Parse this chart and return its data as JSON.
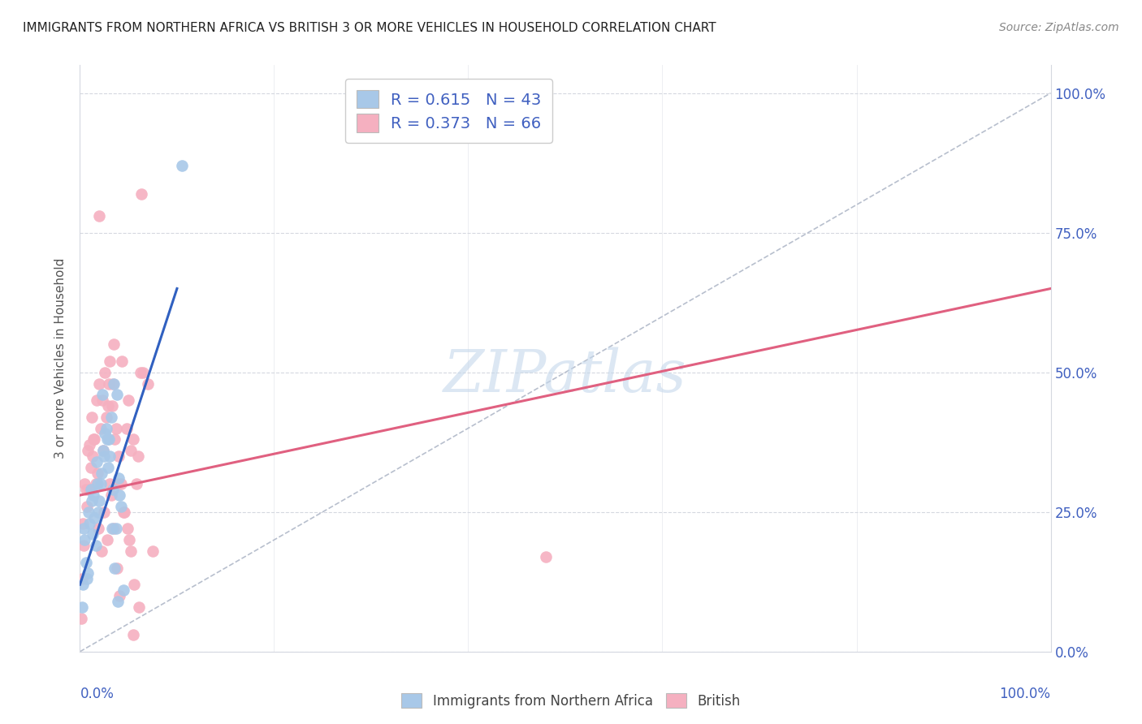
{
  "title": "IMMIGRANTS FROM NORTHERN AFRICA VS BRITISH 3 OR MORE VEHICLES IN HOUSEHOLD CORRELATION CHART",
  "source": "Source: ZipAtlas.com",
  "ylabel": "3 or more Vehicles in Household",
  "xlim": [
    0,
    100
  ],
  "ylim": [
    0,
    105
  ],
  "ytick_labels": [
    "0.0%",
    "25.0%",
    "50.0%",
    "75.0%",
    "100.0%"
  ],
  "ytick_values": [
    0,
    25,
    50,
    75,
    100
  ],
  "xtick_values": [
    0,
    20,
    40,
    60,
    80,
    100
  ],
  "blue_color": "#a8c8e8",
  "pink_color": "#f5b0c0",
  "blue_line_color": "#3060c0",
  "pink_line_color": "#e06080",
  "diagonal_color": "#b0b8c8",
  "watermark_color": "#c5d8ec",
  "legend_text_color": "#4060c0",
  "background_color": "#ffffff",
  "grid_color": "#d5d8e0",
  "blue_scatter_x": [
    0.4,
    0.6,
    0.8,
    1.0,
    1.2,
    1.5,
    1.8,
    2.0,
    2.2,
    2.5,
    2.8,
    3.0,
    3.2,
    3.5,
    3.8,
    4.0,
    4.2,
    4.5,
    0.3,
    0.5,
    0.9,
    1.1,
    1.4,
    1.7,
    2.1,
    2.4,
    2.7,
    3.1,
    3.4,
    3.7,
    4.1,
    0.2,
    0.7,
    1.3,
    1.6,
    1.9,
    2.3,
    2.6,
    2.9,
    3.3,
    3.6,
    3.9,
    10.5
  ],
  "blue_scatter_y": [
    22,
    16,
    14,
    23,
    27,
    24,
    30,
    27,
    32,
    35,
    38,
    38,
    42,
    48,
    46,
    31,
    26,
    11,
    12,
    20,
    25,
    29,
    28,
    34,
    30,
    36,
    40,
    35,
    29,
    22,
    28,
    8,
    13,
    21,
    19,
    25,
    46,
    39,
    33,
    22,
    15,
    9,
    87
  ],
  "pink_scatter_x": [
    0.3,
    0.5,
    0.8,
    1.0,
    1.2,
    1.5,
    1.8,
    2.0,
    2.3,
    2.6,
    2.9,
    3.1,
    3.4,
    3.7,
    4.0,
    4.2,
    4.5,
    5.0,
    5.5,
    6.0,
    6.5,
    7.0,
    0.4,
    0.7,
    1.1,
    1.4,
    1.7,
    2.1,
    2.4,
    2.7,
    3.0,
    3.3,
    3.6,
    3.9,
    4.3,
    4.8,
    5.2,
    5.8,
    6.2,
    0.2,
    0.6,
    1.3,
    1.6,
    1.9,
    2.2,
    2.5,
    2.8,
    3.2,
    3.5,
    3.8,
    4.1,
    4.6,
    5.1,
    5.6,
    6.1,
    7.5,
    0.1,
    1.0,
    2.0,
    3.5,
    4.9,
    5.5,
    6.3,
    5.2,
    3.1,
    48.0
  ],
  "pink_scatter_y": [
    23,
    30,
    36,
    29,
    42,
    38,
    32,
    48,
    45,
    50,
    44,
    52,
    48,
    40,
    35,
    30,
    25,
    45,
    38,
    35,
    50,
    48,
    19,
    26,
    33,
    38,
    45,
    40,
    36,
    42,
    48,
    44,
    38,
    30,
    52,
    40,
    36,
    30,
    50,
    13,
    29,
    35,
    30,
    22,
    18,
    25,
    20,
    28,
    22,
    15,
    10,
    25,
    20,
    12,
    8,
    18,
    6,
    37,
    78,
    55,
    22,
    3,
    82,
    18,
    30,
    17
  ],
  "blue_line_x0": 0,
  "blue_line_y0": 12,
  "blue_line_x1": 10,
  "blue_line_y1": 65,
  "pink_line_x0": 0,
  "pink_line_y0": 28,
  "pink_line_x1": 100,
  "pink_line_y1": 65,
  "diag_x0": 0,
  "diag_y0": 0,
  "diag_x1": 100,
  "diag_y1": 100
}
